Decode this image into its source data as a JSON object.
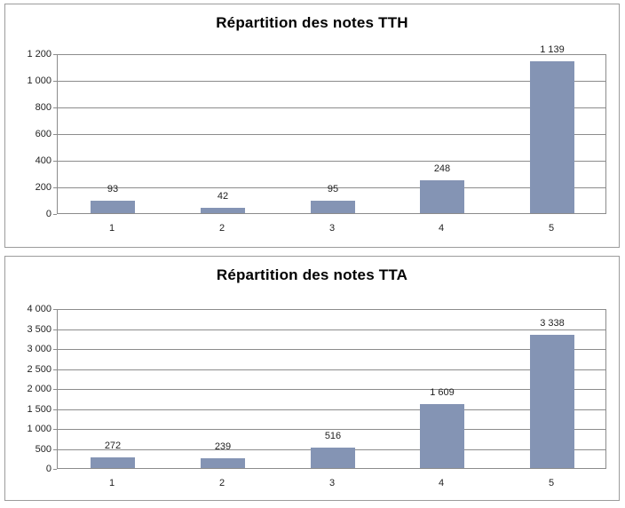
{
  "colors": {
    "bar": "#8494B4",
    "gridline": "#8C8C8C",
    "panel_border": "#9C9C9C",
    "axis_text": "#1F1F1F",
    "title_text": "#000000",
    "background": "#FFFFFF"
  },
  "chart_data": [
    {
      "type": "bar",
      "title": "Répartition des notes TTH",
      "categories": [
        "1",
        "2",
        "3",
        "4",
        "5"
      ],
      "values": [
        93,
        42,
        95,
        248,
        1139
      ],
      "value_labels": [
        "93",
        "42",
        "95",
        "248",
        "1 139"
      ],
      "y_ticks_top_to_bottom": [
        "1 200",
        "1 000",
        "800",
        "600",
        "400",
        "200",
        "0"
      ],
      "ylim": [
        0,
        1200
      ],
      "y_step": 200,
      "xlabel": "",
      "ylabel": "",
      "grid": true,
      "legend": "none"
    },
    {
      "type": "bar",
      "title": "Répartition des notes TTA",
      "categories": [
        "1",
        "2",
        "3",
        "4",
        "5"
      ],
      "values": [
        272,
        239,
        516,
        1609,
        3338
      ],
      "value_labels": [
        "272",
        "239",
        "516",
        "1 609",
        "3 338"
      ],
      "y_ticks_top_to_bottom": [
        "4 000",
        "3 500",
        "3 000",
        "2 500",
        "2 000",
        "1 500",
        "1 000",
        "500",
        "0"
      ],
      "ylim": [
        0,
        4000
      ],
      "y_step": 500,
      "xlabel": "",
      "ylabel": "",
      "grid": true,
      "legend": "none"
    }
  ]
}
